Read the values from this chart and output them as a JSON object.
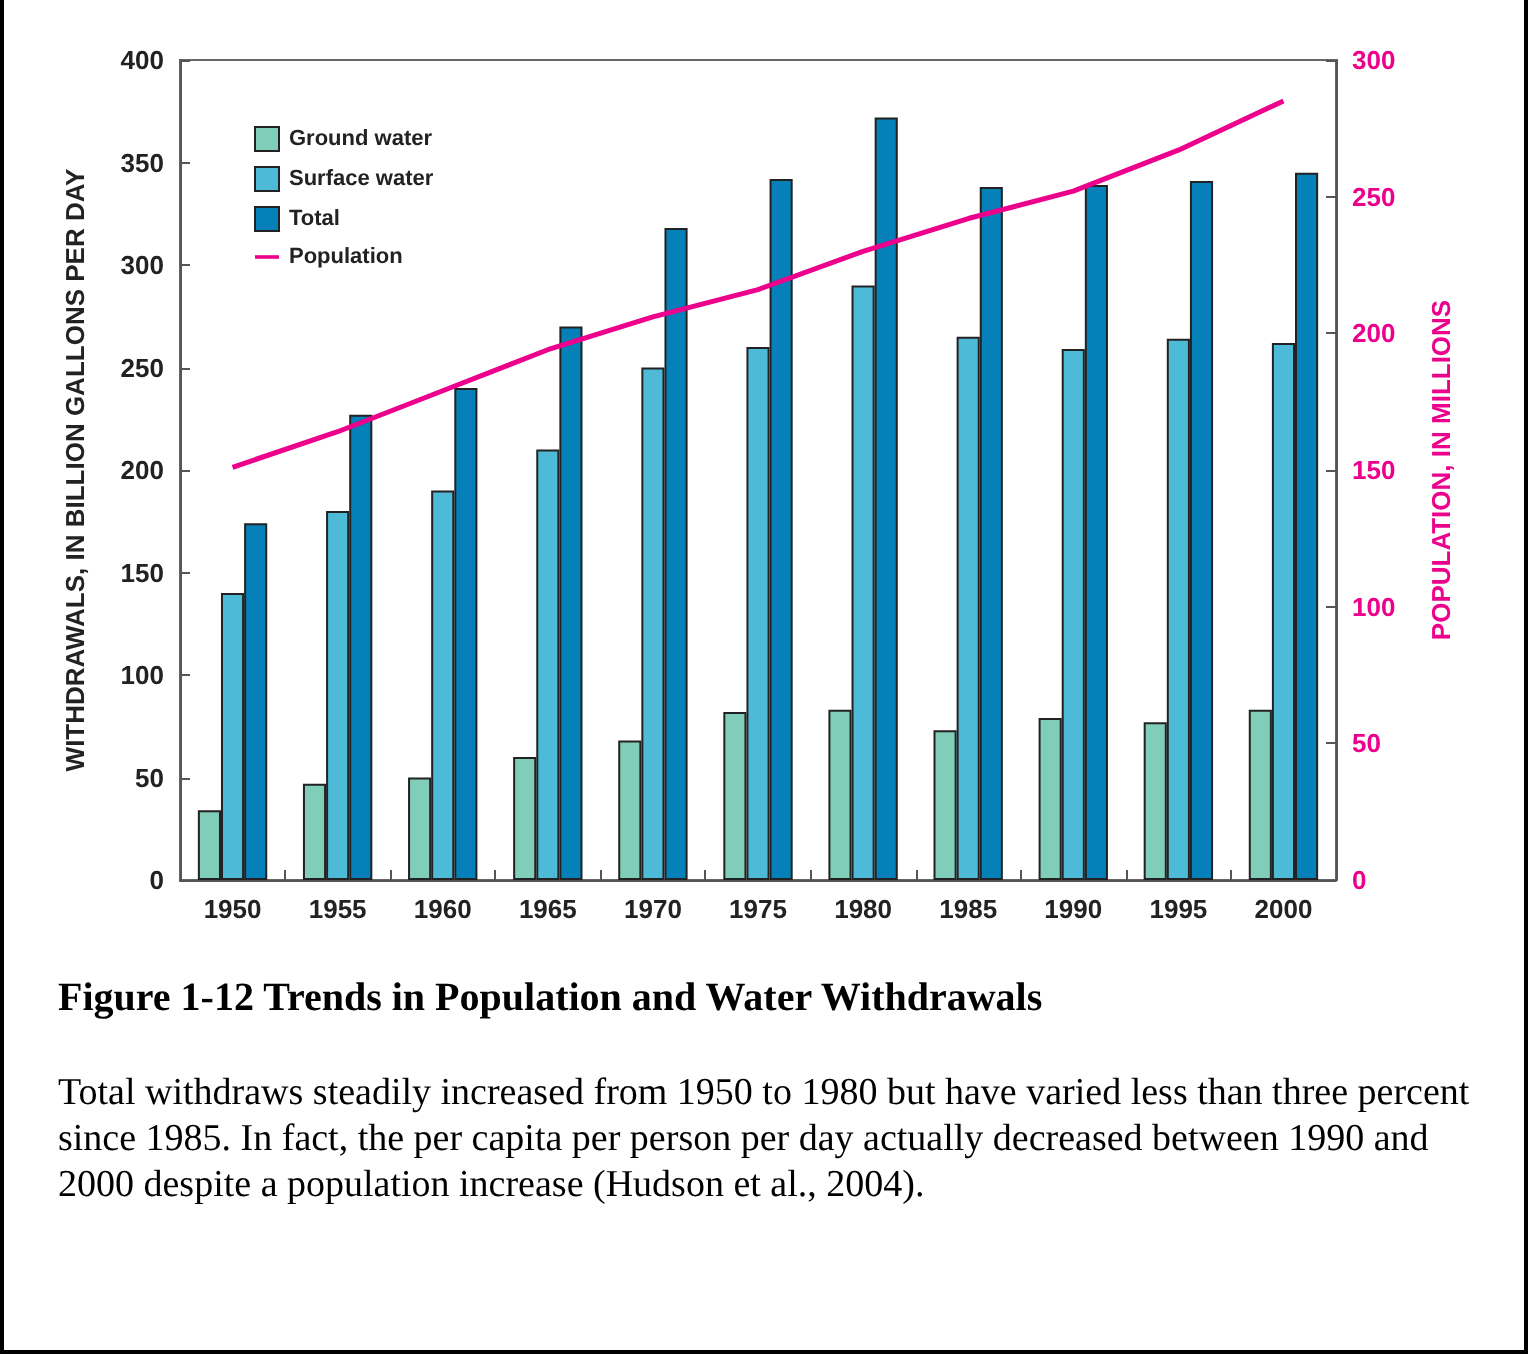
{
  "chart_data": {
    "type": "bar",
    "title": "Figure 1-12  Trends in Population and Water Withdrawals",
    "annotations": [
      "Total withdraws steadily increased from 1950 to 1980 but have varied less than three percent since 1985.  In fact, the per capita per person per day actually decreased between 1990 and 2000 despite a population increase (Hudson et al., 2004)."
    ],
    "ylabel": "WITHDRAWALS, IN BILLION GALLONS PER DAY",
    "y2label": "POPULATION, IN MILLIONS",
    "categories": [
      "1950",
      "1955",
      "1960",
      "1965",
      "1970",
      "1975",
      "1980",
      "1985",
      "1990",
      "1995",
      "2000"
    ],
    "series": [
      {
        "name": "Ground water",
        "color": "#80cdb9",
        "values": [
          34,
          47,
          50,
          60,
          68,
          82,
          83,
          73,
          79,
          77,
          83
        ]
      },
      {
        "name": "Surface water",
        "color": "#4dbad8",
        "values": [
          140,
          180,
          190,
          210,
          250,
          260,
          290,
          265,
          259,
          264,
          262
        ]
      },
      {
        "name": "Total",
        "color": "#0580b8",
        "values": [
          174,
          227,
          240,
          270,
          318,
          342,
          372,
          338,
          339,
          341,
          345
        ]
      },
      {
        "name": "Population",
        "type": "line",
        "axis": "y2",
        "color": "#ec008c",
        "values": [
          151,
          164,
          179,
          194,
          206,
          216,
          230,
          242,
          252,
          267,
          285
        ]
      }
    ],
    "ylim": [
      0,
      400
    ],
    "yticks": [
      0,
      50,
      100,
      150,
      200,
      250,
      300,
      350,
      400
    ],
    "y2lim": [
      0,
      300
    ],
    "y2ticks": [
      0,
      50,
      100,
      150,
      200,
      250,
      300
    ],
    "legend": "top left",
    "grid": false
  }
}
